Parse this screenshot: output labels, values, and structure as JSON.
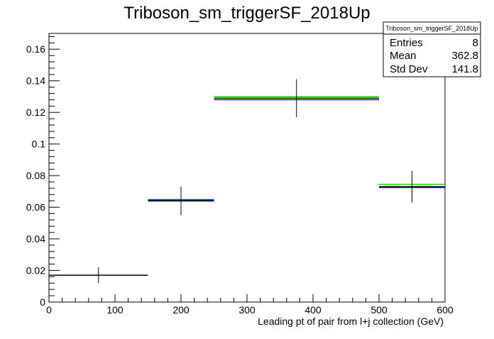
{
  "chart_data": {
    "type": "histogram",
    "title": "Triboson_sm_triggerSF_2018Up",
    "xlabel": "Leading pt of pair from l+j collection (GeV)",
    "ylabel": "",
    "xlim": [
      0,
      600
    ],
    "ylim": [
      0,
      0.17
    ],
    "x_ticks": [
      0,
      100,
      200,
      300,
      400,
      500,
      600
    ],
    "x_tick_labels": [
      "0",
      "100",
      "200",
      "300",
      "400",
      "500",
      "600"
    ],
    "y_ticks": [
      0,
      0.02,
      0.04,
      0.06,
      0.08,
      0.1,
      0.12,
      0.14,
      0.16
    ],
    "y_tick_labels": [
      "0",
      "0.02",
      "0.04",
      "0.06",
      "0.08",
      "0.1",
      "0.12",
      "0.14",
      "0.16"
    ],
    "grid": false,
    "bins": [
      {
        "x_low": 0,
        "x_high": 150,
        "x_center": 75,
        "value": 0.017,
        "error": 0.005
      },
      {
        "x_low": 150,
        "x_high": 250,
        "x_center": 200,
        "value": 0.064,
        "error": 0.009
      },
      {
        "x_low": 250,
        "x_high": 500,
        "x_center": 375,
        "value": 0.129,
        "error": 0.012
      },
      {
        "x_low": 500,
        "x_high": 600,
        "x_center": 550,
        "value": 0.073,
        "error": 0.01
      }
    ],
    "overlay_lines": [
      {
        "color": "#00cc00",
        "values": [
          0.017,
          0.065,
          0.13,
          0.0745
        ]
      },
      {
        "color": "#0000cc",
        "values": [
          0.017,
          0.0645,
          0.128,
          0.0725
        ]
      },
      {
        "color": "#000000",
        "values": [
          0.017,
          0.064,
          0.129,
          0.073
        ]
      }
    ],
    "stats_box": {
      "title": "Triboson_sm_triggerSF_2018Up",
      "rows": [
        {
          "label": "Entries",
          "value": "8"
        },
        {
          "label": "Mean",
          "value": "362.8"
        },
        {
          "label": "Std Dev",
          "value": "141.8"
        }
      ],
      "position": "top-right"
    }
  }
}
